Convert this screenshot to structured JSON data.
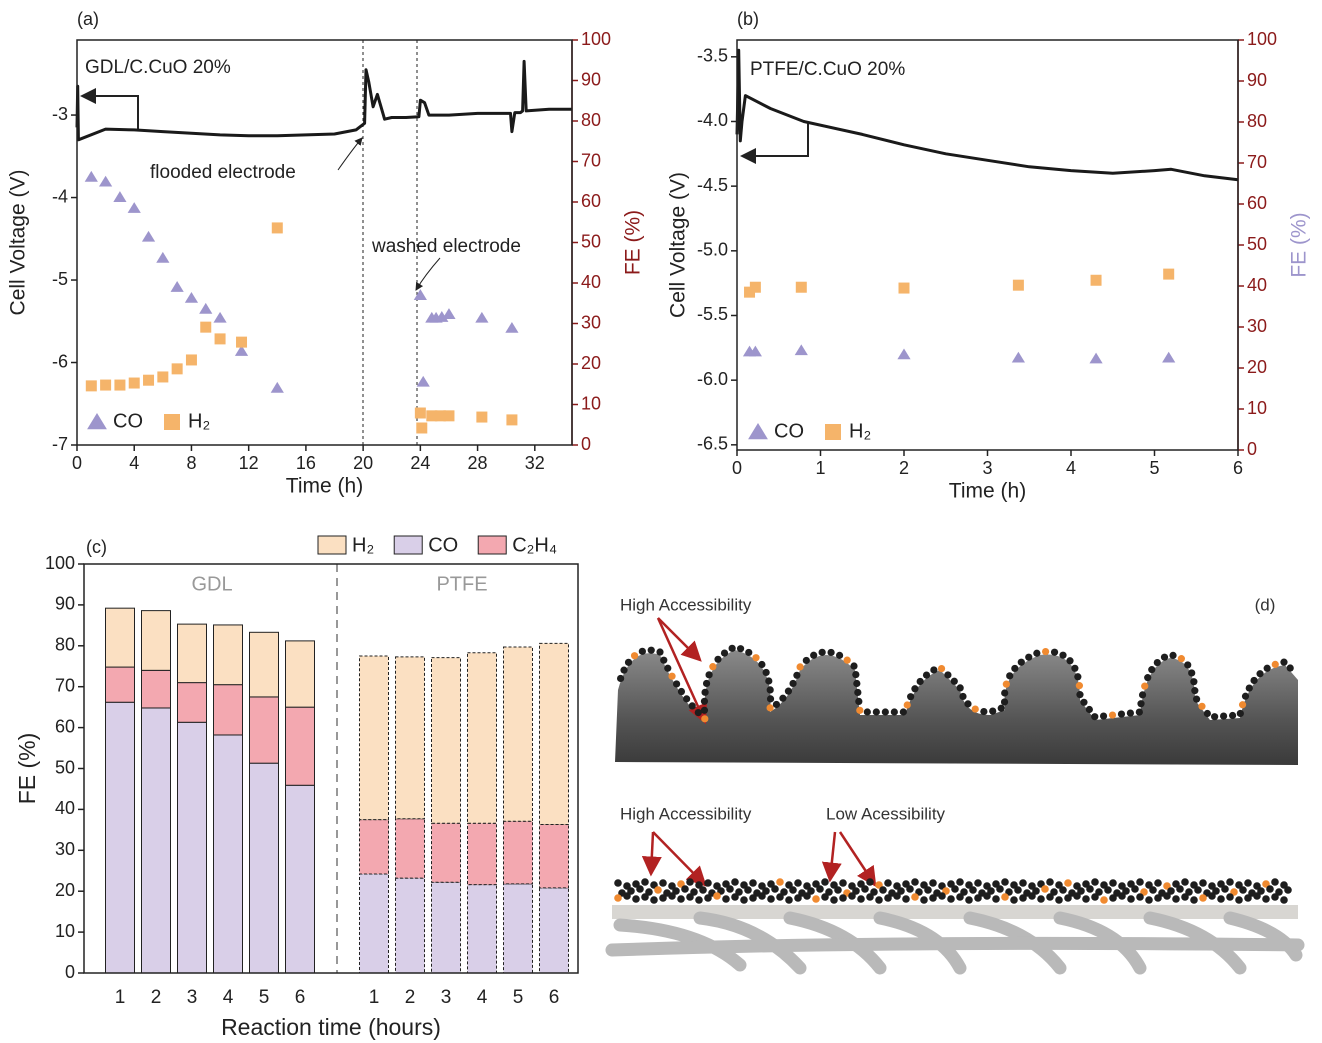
{
  "chart_data": [
    {
      "type": "scatter",
      "annotations": [
        "(a)",
        "GDL/C.CuO 20%",
        "flooded electrode",
        "washed electrode"
      ],
      "xlabel": "Time (h)",
      "ylabel": "Cell Voltage (V)",
      "y2label": "FE (%)",
      "xlim": [
        0,
        34.6
      ],
      "xticks": [
        0,
        4,
        8,
        12,
        16,
        20,
        24,
        28,
        32
      ],
      "ylim": [
        -7,
        -2.09
      ],
      "yticks": [
        -7,
        -6,
        -5,
        -4,
        -3
      ],
      "y2lim": [
        0,
        100
      ],
      "y2ticks": [
        0,
        10,
        20,
        30,
        40,
        50,
        60,
        70,
        80,
        90,
        100
      ],
      "series": [
        {
          "marker": "line",
          "color": "#1a1a1a",
          "x": [
            0,
            0.05,
            0.1,
            2,
            4,
            6,
            8,
            10,
            12,
            14,
            16,
            18,
            19.5,
            20.1,
            20.2,
            20.4,
            20.7,
            21,
            21.5,
            22,
            23,
            23.9,
            24,
            24.3,
            24.6,
            26,
            28,
            30.3,
            30.4,
            30.6,
            31,
            31.15,
            31.25,
            31.4,
            33,
            34.6
          ],
          "values": [
            -3.15,
            -2.65,
            -3.3,
            -3.17,
            -3.18,
            -3.2,
            -3.22,
            -3.24,
            -3.25,
            -3.25,
            -3.24,
            -3.23,
            -3.18,
            -3.1,
            -2.45,
            -2.6,
            -2.9,
            -2.75,
            -3.05,
            -3.03,
            -3.03,
            -3.02,
            -2.82,
            -2.85,
            -3.0,
            -3.0,
            -2.98,
            -2.98,
            -3.2,
            -2.97,
            -2.97,
            -2.95,
            -2.35,
            -2.95,
            -2.93,
            -2.93
          ]
        },
        {
          "name": "CO",
          "marker": "triangle",
          "color": "#9d95cc",
          "axis": "y2",
          "x": [
            1,
            2,
            3,
            4,
            5,
            6,
            7,
            8,
            9,
            10,
            11.5,
            14,
            24,
            24.2,
            24.8,
            25.1,
            25.5,
            26,
            28.3,
            30.4
          ],
          "values": [
            66.2,
            65,
            61.2,
            58.5,
            51.4,
            46.2,
            39,
            36.3,
            33.6,
            31.4,
            23.2,
            14.1,
            37,
            15.6,
            31.4,
            31.4,
            31.6,
            32.3,
            31.4,
            28.9
          ]
        },
        {
          "name": "H₂",
          "marker": "square",
          "color": "#f5b46a",
          "axis": "y2",
          "x": [
            1,
            2,
            3,
            4,
            5,
            6,
            7,
            8,
            9,
            10,
            11.5,
            14,
            24,
            24.1,
            24.8,
            25.4,
            26,
            28.3,
            30.4
          ],
          "values": [
            14.6,
            14.8,
            14.8,
            15.3,
            16,
            16.8,
            18.8,
            21,
            29.1,
            26.2,
            25.4,
            53.6,
            7.9,
            4.2,
            7.2,
            7.2,
            7.2,
            6.9,
            6.2
          ]
        }
      ]
    },
    {
      "type": "scatter",
      "annotations": [
        "(b)",
        "PTFE/C.CuO 20%"
      ],
      "xlabel": "Time (h)",
      "ylabel": "Cell Voltage (V)",
      "y2label": "FE (%)",
      "xlim": [
        0,
        6
      ],
      "xticks": [
        0,
        1,
        2,
        3,
        4,
        5,
        6
      ],
      "ylim": [
        -6.54,
        -3.37
      ],
      "yticks": [
        -6.5,
        {
          "value": -6,
          "label": "-6.0"
        },
        -5.5,
        {
          "value": -5,
          "label": "-5.0"
        },
        -4.5,
        {
          "value": -4,
          "label": "-4.0"
        },
        -3.5
      ],
      "y2lim": [
        0,
        100
      ],
      "y2ticks": [
        0,
        10,
        20,
        30,
        40,
        50,
        60,
        70,
        80,
        90,
        100
      ],
      "series": [
        {
          "marker": "line",
          "color": "#1a1a1a",
          "x": [
            0,
            0.02,
            0.04,
            0.06,
            0.1,
            0.4,
            0.8,
            1.5,
            2,
            2.5,
            3,
            3.5,
            4,
            4.5,
            5,
            5.2,
            5.6,
            6
          ],
          "values": [
            -4.1,
            -3.45,
            -4.15,
            -4.0,
            -3.8,
            -3.9,
            -4.0,
            -4.1,
            -4.18,
            -4.25,
            -4.3,
            -4.35,
            -4.38,
            -4.4,
            -4.38,
            -4.37,
            -4.42,
            -4.45
          ]
        },
        {
          "name": "CO",
          "marker": "triangle",
          "color": "#9d95cc",
          "axis": "y2",
          "x": [
            0.15,
            0.22,
            0.77,
            2,
            3.37,
            4.3,
            5.17
          ],
          "values": [
            24,
            24,
            24.3,
            23.3,
            22.5,
            22.3,
            22.5
          ]
        },
        {
          "name": "H₂",
          "marker": "square",
          "color": "#f5b46a",
          "axis": "y2",
          "x": [
            0.15,
            0.22,
            0.77,
            2,
            3.37,
            4.3,
            5.17
          ],
          "values": [
            38.5,
            39.7,
            39.7,
            39.5,
            40.2,
            41.4,
            42.9
          ]
        }
      ]
    },
    {
      "type": "bar",
      "stacked": true,
      "stack_order": [
        1,
        2,
        0
      ],
      "annotations": [
        "(c)",
        "GDL",
        "PTFE"
      ],
      "xlabel": "Reaction time (hours)",
      "ylabel": "FE (%)",
      "categories": [
        "1",
        "2",
        "3",
        "4",
        "5",
        "6",
        "1",
        "2",
        "3",
        "4",
        "5",
        "6"
      ],
      "ylim": [
        0,
        100
      ],
      "yticks": [
        0,
        10,
        20,
        30,
        40,
        50,
        60,
        70,
        80,
        90,
        100
      ],
      "series": [
        {
          "name": "H₂",
          "color": "#fbe0c2",
          "values": [
            14.4,
            14.6,
            14.3,
            14.6,
            15.8,
            16.2,
            40,
            39.6,
            40.5,
            41.7,
            42.6,
            44.3
          ]
        },
        {
          "name": "CO",
          "color": "#d9cfe8",
          "values": [
            66.2,
            64.8,
            61.3,
            58.2,
            51.3,
            45.9,
            24.2,
            23.2,
            22.2,
            21.6,
            21.8,
            20.8
          ]
        },
        {
          "name": "C₂H₄",
          "color": "#f3a8b0",
          "values": [
            8.6,
            9.2,
            9.7,
            12.3,
            16.2,
            19.1,
            13.3,
            14.5,
            14.4,
            15,
            15.3,
            15.5
          ]
        }
      ]
    }
  ],
  "diagram": {
    "label": "(d)",
    "labels": [
      "High Accessibility",
      "High Accessibility",
      "Low Acessibility"
    ]
  }
}
